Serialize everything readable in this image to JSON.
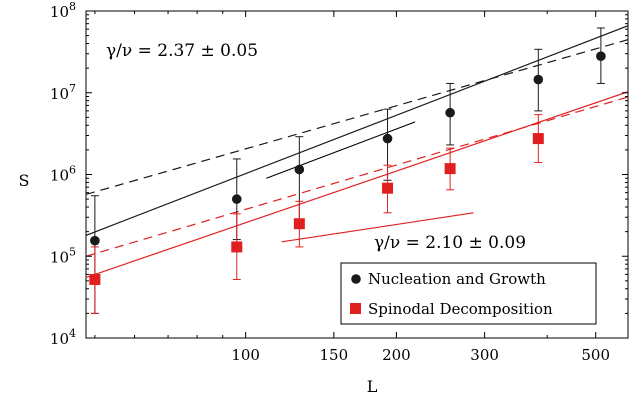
{
  "chart_data": {
    "type": "scatter",
    "xlabel": "L",
    "ylabel": "S",
    "xscale": "log",
    "yscale": "log",
    "xlim": [
      48,
      580
    ],
    "ylim": [
      10000,
      100000000
    ],
    "x_ticks": [
      100,
      150,
      200,
      300,
      500
    ],
    "x_tick_labels": [
      "100",
      "150",
      "200",
      "300",
      "500"
    ],
    "y_ticks": [
      10000,
      100000,
      1000000,
      10000000,
      100000000
    ],
    "y_tick_labels": [
      {
        "base": "10",
        "exp": "4"
      },
      {
        "base": "10",
        "exp": "5"
      },
      {
        "base": "10",
        "exp": "6"
      },
      {
        "base": "10",
        "exp": "7"
      },
      {
        "base": "10",
        "exp": "8"
      }
    ],
    "grid": false,
    "legend_placement": "bottom-right",
    "series": [
      {
        "name": "Nucleation and Growth",
        "color": "#1a1a1a",
        "marker": "circle",
        "x": [
          50,
          96,
          128,
          192,
          256,
          384,
          512
        ],
        "y": [
          155000,
          500000,
          1150000,
          2750000,
          5700000,
          14500000,
          28000000
        ],
        "err_low": [
          20000,
          160000,
          280000,
          850000,
          2300000,
          6000000,
          13000000
        ],
        "err_high": [
          550000,
          1550000,
          2900000,
          6300000,
          13000000,
          34000000,
          62000000
        ],
        "fit_solid": {
          "slope": 2.37,
          "y_at_x": 180000,
          "x_ref": 48
        },
        "fit_dashed": {
          "slope": 1.75,
          "y_at_x": 570000,
          "x_ref": 48
        }
      },
      {
        "name": "Spinodal Decomposition",
        "color": "#e02020",
        "marker": "square",
        "x": [
          50,
          96,
          128,
          192,
          256,
          384
        ],
        "y": [
          52000,
          130000,
          250000,
          680000,
          1180000,
          2750000
        ],
        "err_low": [
          20000,
          52000,
          130000,
          340000,
          650000,
          1400000
        ],
        "err_high": [
          130000,
          330000,
          470000,
          1300000,
          2100000,
          5400000
        ],
        "fit_solid": {
          "slope": 2.1,
          "y_at_x": 55000,
          "x_ref": 48
        },
        "fit_dashed": {
          "slope": 1.8,
          "y_at_x": 100000,
          "x_ref": 48
        }
      }
    ],
    "slope_guides": [
      {
        "color": "#000000",
        "x": [
          110,
          218
        ],
        "y": [
          900000,
          4400000
        ]
      },
      {
        "color": "#e02020",
        "x": [
          118,
          285
        ],
        "y": [
          150000,
          340000
        ]
      }
    ],
    "annotations": [
      {
        "text": "γ/ν = 2.37 ± 0.05",
        "color": "#000000"
      },
      {
        "text": "γ/ν  = 2.10 ± 0.09",
        "color": "#000000"
      }
    ]
  }
}
